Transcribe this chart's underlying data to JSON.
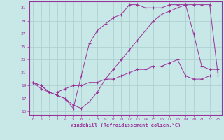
{
  "bg_color": "#c8e8e8",
  "line_color": "#993399",
  "grid_color": "#aacccc",
  "xlabel": "Windchill (Refroidissement éolien,°C)",
  "xlim": [
    -0.5,
    23.5
  ],
  "ylim": [
    14.5,
    32.0
  ],
  "yticks": [
    15,
    17,
    19,
    21,
    23,
    25,
    27,
    29,
    31
  ],
  "xticks": [
    0,
    1,
    2,
    3,
    4,
    5,
    6,
    7,
    8,
    9,
    10,
    11,
    12,
    13,
    14,
    15,
    16,
    17,
    18,
    19,
    20,
    21,
    22,
    23
  ],
  "line1_x": [
    0,
    1,
    2,
    3,
    4,
    5,
    6,
    7,
    8,
    9,
    10,
    11,
    12,
    13,
    14,
    15,
    16,
    17,
    18,
    19,
    20,
    21,
    22,
    23
  ],
  "line1_y": [
    19.5,
    19.0,
    18.0,
    17.5,
    17.0,
    16.0,
    15.5,
    16.5,
    18.0,
    20.0,
    21.5,
    23.0,
    24.5,
    26.0,
    27.5,
    29.0,
    30.0,
    30.5,
    31.0,
    31.5,
    31.5,
    31.5,
    31.5,
    21.0
  ],
  "line2_x": [
    0,
    1,
    2,
    3,
    4,
    5,
    6,
    7,
    8,
    9,
    10,
    11,
    12,
    13,
    14,
    15,
    16,
    17,
    18,
    19,
    20,
    21,
    22,
    23
  ],
  "line2_y": [
    19.5,
    19.0,
    18.0,
    17.5,
    17.0,
    15.5,
    20.5,
    25.5,
    27.5,
    28.5,
    29.5,
    30.0,
    31.5,
    31.5,
    31.0,
    31.0,
    31.0,
    31.5,
    31.5,
    31.5,
    27.0,
    22.0,
    21.5,
    21.5
  ],
  "line3_x": [
    0,
    1,
    2,
    3,
    4,
    5,
    6,
    7,
    8,
    9,
    10,
    11,
    12,
    13,
    14,
    15,
    16,
    17,
    18,
    19,
    20,
    21,
    22,
    23
  ],
  "line3_y": [
    19.5,
    18.5,
    18.0,
    18.0,
    18.5,
    19.0,
    19.0,
    19.5,
    19.5,
    20.0,
    20.0,
    20.5,
    21.0,
    21.5,
    21.5,
    22.0,
    22.0,
    22.5,
    23.0,
    20.5,
    20.0,
    20.0,
    20.5,
    20.5
  ]
}
